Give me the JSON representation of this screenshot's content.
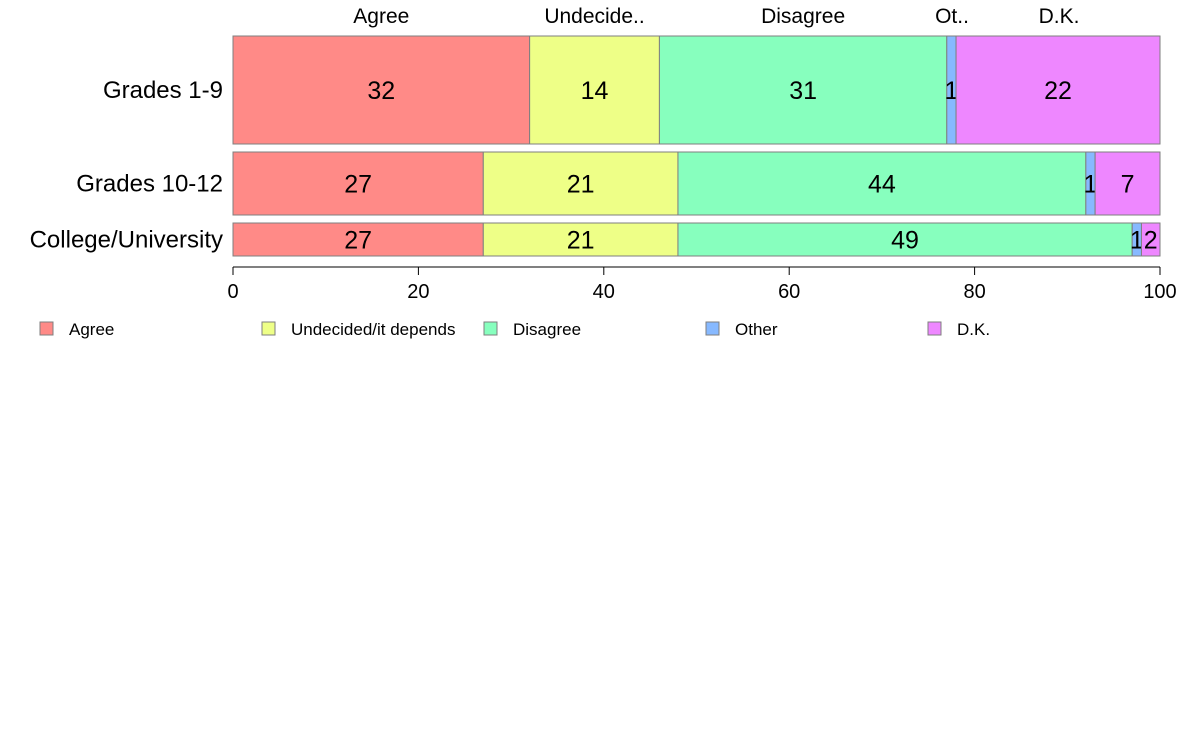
{
  "chart_data": {
    "type": "bar",
    "orientation": "horizontal",
    "stacked": true,
    "categories": [
      "Grades 1-9",
      "Grades 10-12",
      "College/University"
    ],
    "series": [
      {
        "name": "Agree",
        "short_label": "Agree",
        "color": "#ff8a87",
        "values": [
          32,
          27,
          27
        ]
      },
      {
        "name": "Undecided/it depends",
        "short_label": "Undecide..",
        "color": "#eeff87",
        "values": [
          14,
          21,
          21
        ]
      },
      {
        "name": "Disagree",
        "short_label": "Disagree",
        "color": "#87ffbe",
        "values": [
          31,
          44,
          49
        ]
      },
      {
        "name": "Other",
        "short_label": "Ot..",
        "color": "#87b9ff",
        "values": [
          1,
          1,
          1
        ]
      },
      {
        "name": "D.K.",
        "short_label": "D.K.",
        "color": "#ee87ff",
        "values": [
          22,
          7,
          2
        ]
      }
    ],
    "xlim": [
      0,
      100
    ],
    "xticks": [
      "0",
      "20",
      "40",
      "60",
      "80",
      "100"
    ],
    "legend_position": "bottom",
    "grid": false
  }
}
